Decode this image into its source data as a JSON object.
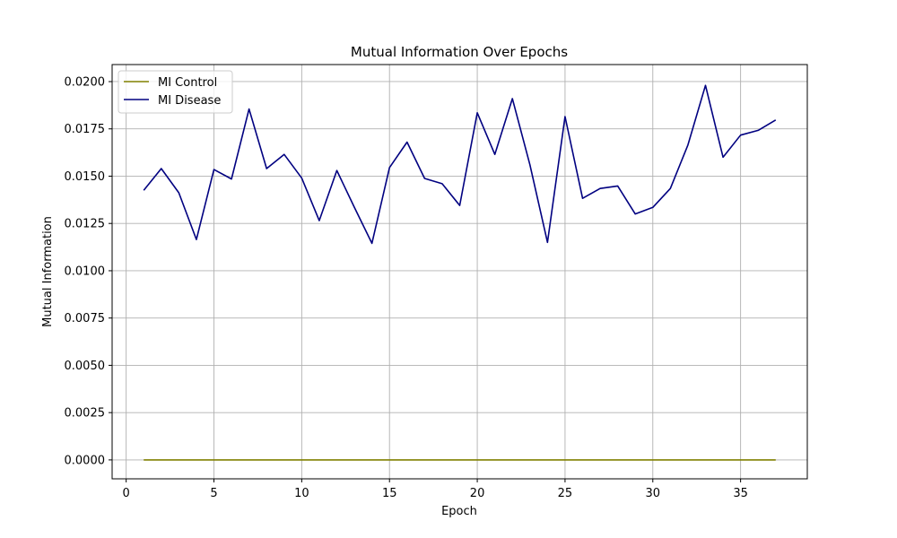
{
  "chart_data": {
    "type": "line",
    "title": "Mutual Information Over Epochs",
    "xlabel": "Epoch",
    "ylabel": "Mutual Information",
    "xlim": [
      -0.8,
      38.8
    ],
    "ylim": [
      -0.001,
      0.0209
    ],
    "xticks": [
      0,
      5,
      10,
      15,
      20,
      25,
      30,
      35
    ],
    "yticks": [
      0.0,
      0.0025,
      0.005,
      0.0075,
      0.01,
      0.0125,
      0.015,
      0.0175,
      0.02
    ],
    "ytick_labels": [
      "0.0000",
      "0.0025",
      "0.0050",
      "0.0075",
      "0.0100",
      "0.0125",
      "0.0150",
      "0.0175",
      "0.0200"
    ],
    "grid": true,
    "legend_position": "top-left",
    "x": [
      1,
      2,
      3,
      4,
      5,
      6,
      7,
      8,
      9,
      10,
      11,
      12,
      13,
      14,
      15,
      16,
      17,
      18,
      19,
      20,
      21,
      22,
      23,
      24,
      25,
      26,
      27,
      28,
      29,
      30,
      31,
      32,
      33,
      34,
      35,
      36,
      37
    ],
    "series": [
      {
        "name": "MI Control",
        "color": "#808000",
        "values": [
          0,
          0,
          0,
          0,
          0,
          0,
          0,
          0,
          0,
          0,
          0,
          0,
          0,
          0,
          0,
          0,
          0,
          0,
          0,
          0,
          0,
          0,
          0,
          0,
          0,
          0,
          0,
          0,
          0,
          0,
          0,
          0,
          0,
          0,
          0,
          0,
          0
        ]
      },
      {
        "name": "MI Disease",
        "color": "#000080",
        "values": [
          0.01425,
          0.0154,
          0.01412,
          0.01165,
          0.01535,
          0.01485,
          0.01855,
          0.0154,
          0.01615,
          0.0149,
          0.01265,
          0.0153,
          0.01335,
          0.01145,
          0.01545,
          0.0168,
          0.01488,
          0.0146,
          0.01345,
          0.01835,
          0.01615,
          0.0191,
          0.0156,
          0.0115,
          0.01815,
          0.01383,
          0.01435,
          0.01448,
          0.013,
          0.01335,
          0.01435,
          0.01665,
          0.0198,
          0.016,
          0.01717,
          0.01742,
          0.01797
        ]
      }
    ]
  }
}
